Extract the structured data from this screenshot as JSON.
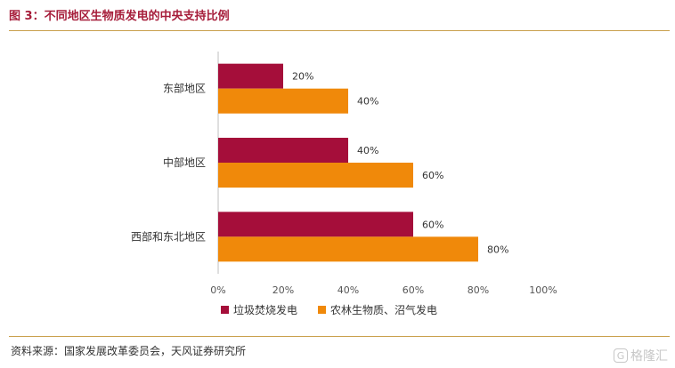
{
  "title": "图 3：不同地区生物质发电的中央支持比例",
  "source": "资料来源：国家发展改革委员会，天风证券研究所",
  "watermark": {
    "logo": "G",
    "text": "格隆汇"
  },
  "colors": {
    "series1": "#a50e3a",
    "series2": "#f0890a",
    "accent": "#c9a04c",
    "axis": "#bfbfbf"
  },
  "chart_data": {
    "type": "bar",
    "orientation": "horizontal",
    "categories": [
      "东部地区",
      "中部地区",
      "西部和东北地区"
    ],
    "series": [
      {
        "name": "垃圾焚烧发电",
        "values": [
          20,
          40,
          60
        ],
        "labels": [
          "20%",
          "40%",
          "60%"
        ]
      },
      {
        "name": "农林生物质、沼气发电",
        "values": [
          40,
          60,
          80
        ],
        "labels": [
          "40%",
          "60%",
          "80%"
        ]
      }
    ],
    "xlim": [
      0,
      100
    ],
    "xticks": [
      0,
      20,
      40,
      60,
      80,
      100
    ],
    "xtick_labels": [
      "0%",
      "20%",
      "40%",
      "60%",
      "80%",
      "100%"
    ],
    "grid": false,
    "legend": "bottom"
  }
}
